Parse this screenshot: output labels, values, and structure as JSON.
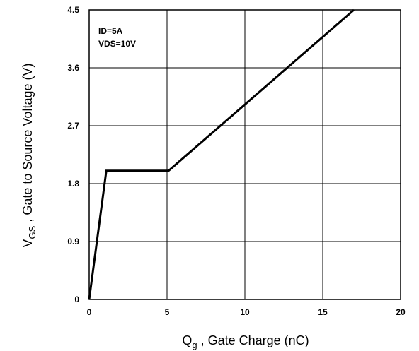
{
  "chart_data": {
    "type": "line",
    "title": "",
    "x": [
      0,
      1.1,
      5.1,
      17
    ],
    "series": [
      {
        "values": [
          0,
          2.0,
          2.0,
          4.5
        ]
      }
    ],
    "xlim": [
      0,
      20
    ],
    "ylim": [
      0,
      4.5
    ],
    "xticks": [
      0,
      5,
      10,
      15,
      20
    ],
    "yticks": [
      0,
      0.9,
      1.8,
      2.7,
      3.6,
      4.5
    ],
    "xtick_labels": [
      "0",
      "5",
      "10",
      "15",
      "20"
    ],
    "ytick_labels": [
      "0",
      "0.9",
      "1.8",
      "2.7",
      "3.6",
      "4.5"
    ],
    "xlabel": {
      "main": "Q",
      "sub": "g",
      "rest": " , Gate Charge (nC)"
    },
    "ylabel": {
      "main": "V",
      "sub": "GS",
      "rest": " , Gate to Source Voltage (V)"
    },
    "annotations": [
      "ID=5A",
      "VDS=10V"
    ],
    "grid": true,
    "line_color": "#000000",
    "grid_color": "#000000"
  }
}
